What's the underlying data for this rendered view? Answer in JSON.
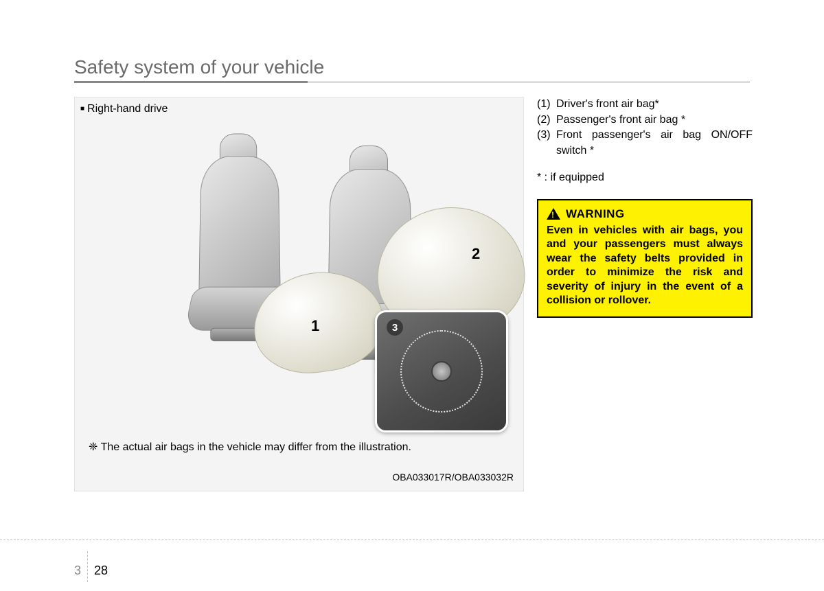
{
  "header": {
    "title": "Safety system of your vehicle"
  },
  "figure": {
    "caption": "Right-hand drive",
    "disclaimer": "❈ The actual air bags in the vehicle may differ from the illustration.",
    "code": "OBA033017R/OBA033032R",
    "callouts": {
      "n1": "1",
      "n2": "2",
      "n3": "3"
    },
    "styling": {
      "box_bg": "#f4f4f4",
      "box_border": "#e3e3e3",
      "seat_gradient_light": "#e8e8e8",
      "seat_gradient_dark": "#a8a8a8",
      "airbag_highlight": "#ffffff",
      "airbag_mid": "#e2e0d2",
      "airbag_shadow": "#cdcab7",
      "inset_bg_dark": "#3a3a3a",
      "inset_border": "#ffffff",
      "inset_ring": "#e5e5e5"
    }
  },
  "legend": {
    "items": [
      {
        "num": "(1)",
        "text": "Driver's front air bag*"
      },
      {
        "num": "(2)",
        "text": "Passenger's front air bag *"
      },
      {
        "num": "(3)",
        "text": "Front passenger's air bag ON/OFF switch *"
      }
    ],
    "footnote": "* : if equipped"
  },
  "warning": {
    "title": "WARNING",
    "body": "Even in vehicles with air bags, you and your passengers must always wear the safety belts provided in order to minimize the risk and severity of injury in the event of a collision or rollover.",
    "bg_color": "#fff200",
    "border_color": "#000000",
    "text_color": "#000000"
  },
  "footer": {
    "chapter": "3",
    "page": "28"
  }
}
